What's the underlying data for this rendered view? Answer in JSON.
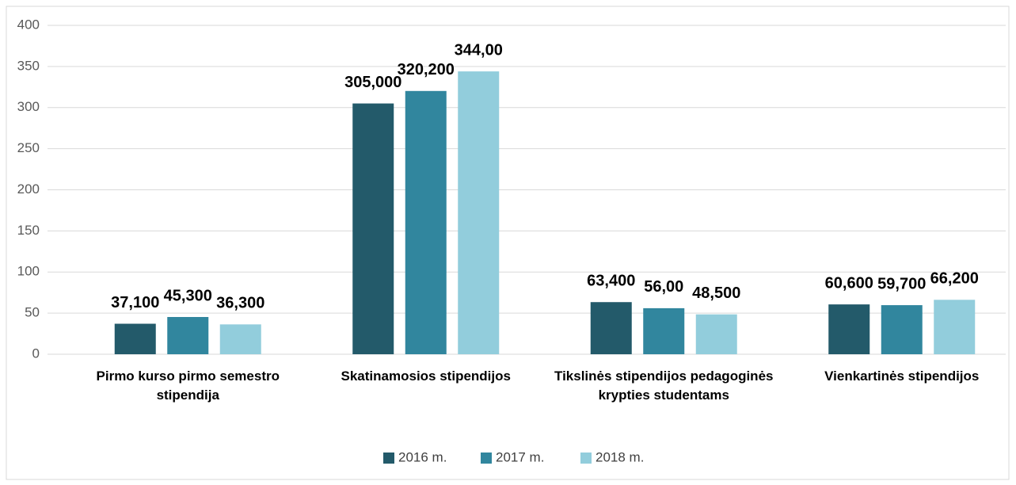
{
  "chart_data": {
    "type": "bar",
    "categories": [
      "Pirmo kurso pirmo semestro stipendija",
      "Skatinamosios stipendijos",
      "Tikslinės stipendijos pedagoginės krypties studentams",
      "Vienkartinės stipendijos"
    ],
    "series": [
      {
        "name": "2016 m.",
        "color": "#235a6a",
        "values": [
          37.1,
          305,
          63.4,
          60.6
        ],
        "value_labels": [
          "37,100",
          "305,000",
          "63,400",
          "60,600"
        ]
      },
      {
        "name": "2017 m.",
        "color": "#31869e",
        "values": [
          45.3,
          320.2,
          56,
          59.7
        ],
        "value_labels": [
          "45,300",
          "320,200",
          "56,00",
          "59,700"
        ]
      },
      {
        "name": "2018 m.",
        "color": "#92cddc",
        "values": [
          36.3,
          344,
          48.5,
          66.2
        ],
        "value_labels": [
          "36,300",
          "344,00",
          "48,500",
          "66,200"
        ]
      }
    ],
    "ylim": [
      0,
      400
    ],
    "yticks": [
      0,
      50,
      100,
      150,
      200,
      250,
      300,
      350,
      400
    ],
    "grid": true,
    "legend": "bottom"
  }
}
